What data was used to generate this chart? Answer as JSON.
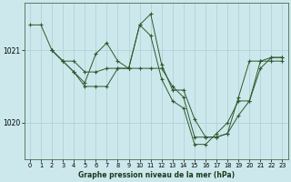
{
  "title": "Graphe pression niveau de la mer (hPa)",
  "bg_color": "#cde8ec",
  "grid_color": "#aacdd4",
  "line_color": "#2d5a2d",
  "ylim": [
    1019.5,
    1021.65
  ],
  "xlim": [
    -0.5,
    23.5
  ],
  "yticks": [
    1020,
    1021
  ],
  "xticks": [
    0,
    1,
    2,
    3,
    4,
    5,
    6,
    7,
    8,
    9,
    10,
    11,
    12,
    13,
    14,
    15,
    16,
    17,
    18,
    19,
    20,
    21,
    22,
    23
  ],
  "series": [
    {
      "x": [
        0,
        1,
        2,
        3,
        4,
        5,
        6,
        7,
        8,
        9,
        10,
        11,
        12,
        13,
        14,
        15,
        16,
        17,
        18,
        19,
        20,
        21,
        22,
        23
      ],
      "y": [
        1021.35,
        1021.35,
        1021.0,
        1020.85,
        1020.85,
        1020.7,
        1020.7,
        1020.75,
        1020.75,
        1020.75,
        1021.35,
        1021.5,
        1020.8,
        1020.45,
        1020.45,
        1020.05,
        1019.8,
        1019.8,
        1019.85,
        1020.35,
        1020.85,
        1020.85,
        1020.85,
        1020.85
      ]
    },
    {
      "x": [
        2,
        3,
        4,
        5,
        6,
        7,
        8,
        9,
        10,
        11,
        12,
        13,
        14,
        15,
        16,
        17,
        18,
        19,
        20,
        21,
        22,
        23
      ],
      "y": [
        1021.0,
        1020.85,
        1020.7,
        1020.55,
        1020.95,
        1021.1,
        1020.85,
        1020.75,
        1021.35,
        1021.2,
        1020.6,
        1020.3,
        1020.2,
        1019.7,
        1019.7,
        1019.85,
        1020.0,
        1020.3,
        1020.3,
        1020.85,
        1020.9,
        1020.9
      ]
    },
    {
      "x": [
        2,
        3,
        4,
        5,
        6,
        7,
        8,
        9,
        10,
        11,
        12,
        13,
        14,
        15,
        16,
        17,
        18,
        19,
        20,
        21,
        22,
        23
      ],
      "y": [
        1021.0,
        1020.85,
        1020.7,
        1020.5,
        1020.5,
        1020.5,
        1020.75,
        1020.75,
        1020.75,
        1020.75,
        1020.75,
        1020.5,
        1020.35,
        1019.8,
        1019.8,
        1019.8,
        1019.85,
        1020.1,
        1020.3,
        1020.75,
        1020.9,
        1020.9
      ]
    }
  ]
}
